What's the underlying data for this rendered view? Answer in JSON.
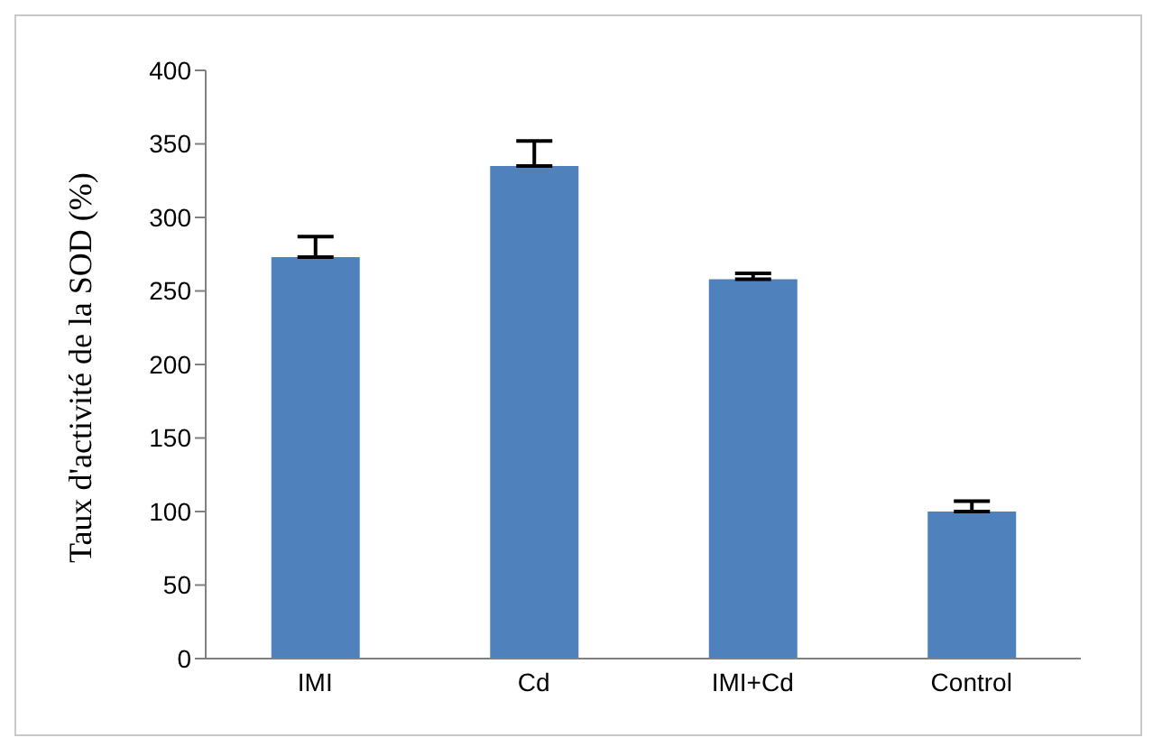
{
  "chart_data": {
    "type": "bar",
    "ylabel": "Taux d'activité de la SOD (%)",
    "categories": [
      "IMI",
      "Cd",
      "IMI+Cd",
      "Control"
    ],
    "values": [
      273,
      335,
      258,
      100
    ],
    "errors": [
      [
        273,
        287
      ],
      [
        335,
        352
      ],
      [
        258,
        262
      ],
      [
        100,
        107
      ]
    ],
    "color": "#4f81bd",
    "ylim": [
      0,
      400
    ],
    "yticks": [
      0,
      50,
      100,
      150,
      200,
      250,
      300,
      350,
      400
    ],
    "grid": false
  }
}
